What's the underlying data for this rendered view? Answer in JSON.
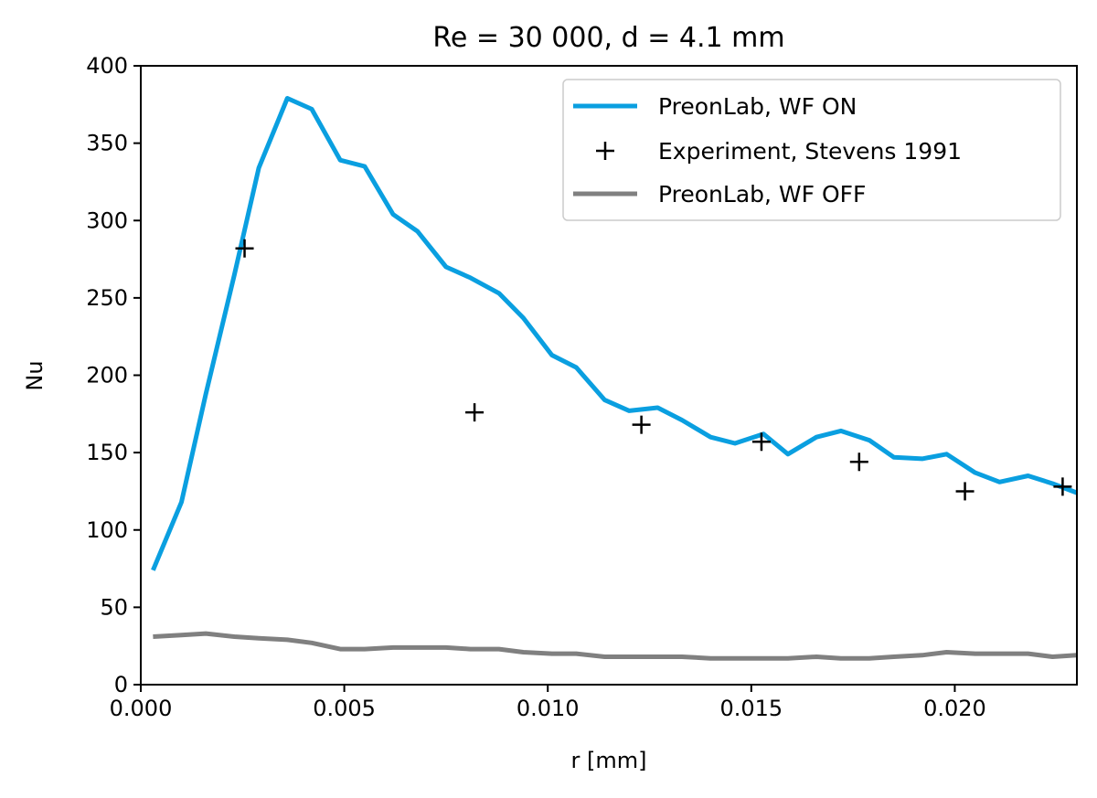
{
  "chart_data": {
    "type": "line",
    "title": "Re = 30 000, d = 4.1 mm",
    "xlabel": "r [mm]",
    "ylabel": "Nu",
    "xlim": [
      0.0,
      0.023
    ],
    "ylim": [
      0,
      400
    ],
    "xticks": [
      "0.000",
      "0.005",
      "0.010",
      "0.015",
      "0.020"
    ],
    "xtick_values": [
      0.0,
      0.005,
      0.01,
      0.015,
      0.02
    ],
    "yticks": [
      "0",
      "50",
      "100",
      "150",
      "200",
      "250",
      "300",
      "350",
      "400"
    ],
    "ytick_values": [
      0,
      50,
      100,
      150,
      200,
      250,
      300,
      350,
      400
    ],
    "grid": false,
    "legend_position": "top-right",
    "series": [
      {
        "name": "PreonLab, WF ON",
        "style": "line",
        "color": "#0A9FE0",
        "x": [
          0.0003,
          0.001,
          0.0016,
          0.0023,
          0.0029,
          0.0036,
          0.0042,
          0.0049,
          0.0055,
          0.0062,
          0.0068,
          0.0075,
          0.0081,
          0.0088,
          0.0094,
          0.0101,
          0.0107,
          0.0114,
          0.012,
          0.0127,
          0.0133,
          0.014,
          0.0146,
          0.0153,
          0.0159,
          0.0166,
          0.0172,
          0.0179,
          0.0185,
          0.0192,
          0.0198,
          0.0205,
          0.0211,
          0.0218,
          0.0224,
          0.023
        ],
        "y": [
          74,
          118,
          188,
          265,
          334,
          379,
          372,
          339,
          335,
          304,
          293,
          270,
          263,
          253,
          237,
          213,
          205,
          184,
          177,
          179,
          171,
          160,
          156,
          162,
          149,
          160,
          164,
          158,
          147,
          146,
          149,
          137,
          131,
          135,
          130,
          124
        ]
      },
      {
        "name": "Experiment, Stevens 1991",
        "style": "marker",
        "color": "#000000",
        "x": [
          0.00255,
          0.0082,
          0.0123,
          0.01525,
          0.01765,
          0.02025,
          0.02265
        ],
        "y": [
          282,
          176,
          168,
          157,
          144,
          125,
          128
        ]
      },
      {
        "name": "PreonLab, WF OFF",
        "style": "line",
        "color": "#808080",
        "x": [
          0.0003,
          0.001,
          0.0016,
          0.0023,
          0.0029,
          0.0036,
          0.0042,
          0.0049,
          0.0055,
          0.0062,
          0.0068,
          0.0075,
          0.0081,
          0.0088,
          0.0094,
          0.0101,
          0.0107,
          0.0114,
          0.012,
          0.0127,
          0.0133,
          0.014,
          0.0146,
          0.0153,
          0.0159,
          0.0166,
          0.0172,
          0.0179,
          0.0185,
          0.0192,
          0.0198,
          0.0205,
          0.0211,
          0.0218,
          0.0224,
          0.023
        ],
        "y": [
          31,
          32,
          33,
          31,
          30,
          29,
          27,
          23,
          23,
          24,
          24,
          24,
          23,
          23,
          21,
          20,
          20,
          18,
          18,
          18,
          18,
          17,
          17,
          17,
          17,
          18,
          17,
          17,
          18,
          19,
          21,
          20,
          20,
          20,
          18,
          19
        ]
      }
    ]
  }
}
